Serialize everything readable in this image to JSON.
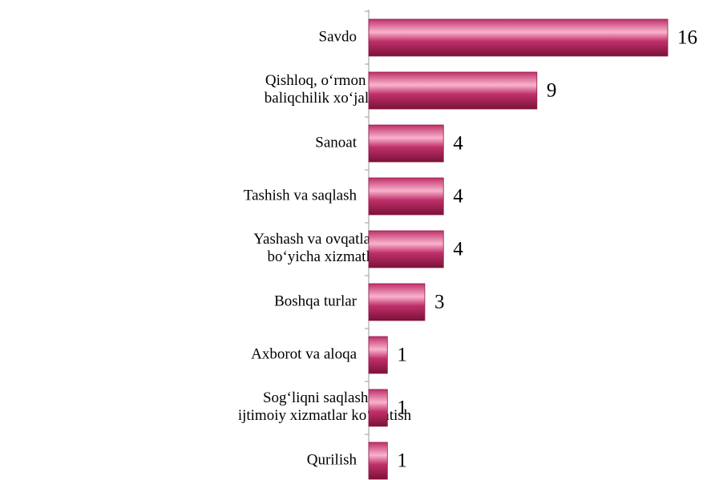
{
  "chart_data": {
    "type": "bar",
    "orientation": "horizontal",
    "categories": [
      "Savdo",
      "Qishloq, o‘rmon va baliqchilik xo‘jaligi",
      "Sanoat",
      "Tashish va saqlash",
      "Yashash va ovqatlanish bo‘yicha xizmatlar",
      "Boshqa turlar",
      "Axborot va aloqa",
      "Sog‘liqni saqlash va ijtimoiy xizmatlar ko‘rsatish",
      "Qurilish"
    ],
    "values": [
      16,
      9,
      4,
      4,
      4,
      3,
      1,
      1,
      1
    ],
    "color": "#c0306a"
  }
}
